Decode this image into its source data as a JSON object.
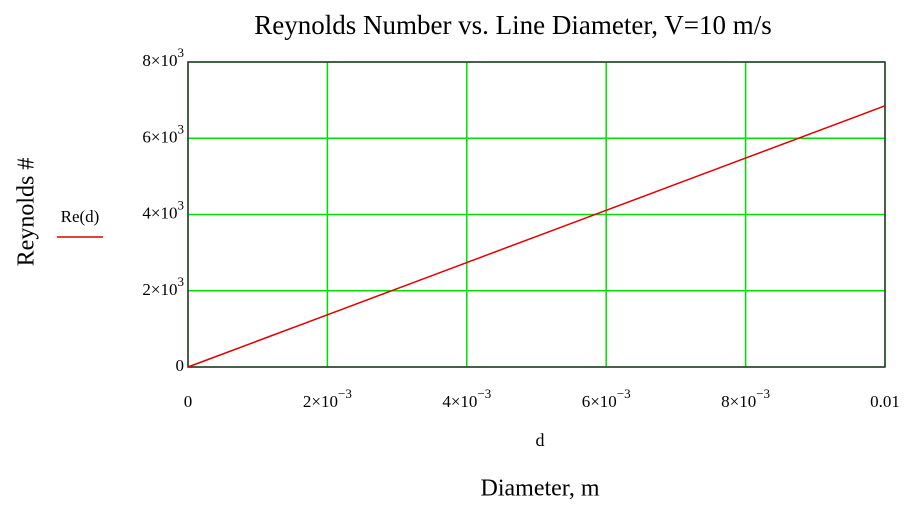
{
  "chart_data": {
    "type": "line",
    "title": "Reynolds Number vs. Line Diameter, V=10 m/s",
    "ylabel": "Reynolds #",
    "x_variable": "d",
    "xlabel": "Diameter, m",
    "x": [
      0,
      0.001,
      0.002,
      0.003,
      0.004,
      0.005,
      0.006,
      0.007,
      0.008,
      0.009,
      0.01
    ],
    "series": [
      {
        "name": "Re(d)",
        "color": "#e00000",
        "values": [
          0,
          685,
          1370,
          2055,
          2740,
          3425,
          4110,
          4795,
          5480,
          6165,
          6850
        ]
      }
    ],
    "xlim": [
      0,
      0.01
    ],
    "xticks": [
      0,
      {
        "value": 0.002,
        "label": [
          "2×10",
          "−3"
        ]
      },
      {
        "value": 0.004,
        "label": [
          "4×10",
          "−3"
        ]
      },
      {
        "value": 0.006,
        "label": [
          "6×10",
          "−3"
        ]
      },
      {
        "value": 0.008,
        "label": [
          "8×10",
          "−3"
        ]
      },
      0.01
    ],
    "ylim": [
      0,
      8000
    ],
    "yticks": [
      0,
      {
        "value": 2000,
        "label": [
          "2×10",
          "3"
        ]
      },
      {
        "value": 4000,
        "label": [
          "4×10",
          "3"
        ]
      },
      {
        "value": 6000,
        "label": [
          "6×10",
          "3"
        ]
      },
      {
        "value": 8000,
        "label": [
          "8×10",
          "3"
        ]
      }
    ],
    "grid": true,
    "grid_color": "#00dd00"
  }
}
